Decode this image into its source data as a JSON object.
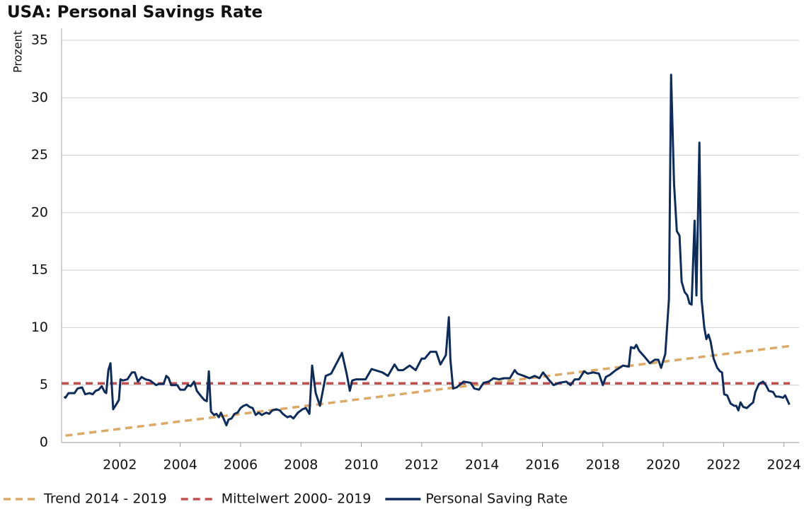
{
  "chart_data": {
    "type": "line",
    "title": "USA: Personal Savings Rate",
    "y_label": "Prozent",
    "xlim": [
      2000.07,
      2024.5
    ],
    "xticks": [
      2002,
      2004,
      2006,
      2008,
      2010,
      2012,
      2014,
      2016,
      2018,
      2020,
      2022,
      2024
    ],
    "ylim": [
      0,
      35
    ],
    "yticks": [
      0,
      5,
      10,
      15,
      20,
      25,
      30,
      35
    ],
    "grid": true,
    "legend": "bottom",
    "series": [
      {
        "name": "Trend 2014 - 2019",
        "color": "#ddaa66",
        "dash": true,
        "x": [
          2000.2,
          2024.2
        ],
        "values": [
          0.6,
          8.4
        ]
      },
      {
        "name": "Mittelwert 2000- 2019",
        "color": "#c0504d",
        "dash": true,
        "x": [
          2000.07,
          2024.2
        ],
        "values": [
          5.15,
          5.15
        ]
      },
      {
        "name": "Personal Saving Rate",
        "color": "#0d2c5c",
        "dash": false,
        "x": [
          2000.16,
          2000.2,
          2000.3,
          2000.5,
          2000.6,
          2000.75,
          2000.85,
          2001.0,
          2001.1,
          2001.2,
          2001.3,
          2001.4,
          2001.5,
          2001.55,
          2001.62,
          2001.69,
          2001.78,
          2001.9,
          2001.97,
          2002.02,
          2002.1,
          2002.25,
          2002.4,
          2002.5,
          2002.6,
          2002.72,
          2002.85,
          2003.0,
          2003.2,
          2003.3,
          2003.45,
          2003.54,
          2003.62,
          2003.7,
          2003.9,
          2004.0,
          2004.15,
          2004.25,
          2004.35,
          2004.46,
          2004.55,
          2004.7,
          2004.8,
          2004.88,
          2004.95,
          2005.02,
          2005.12,
          2005.2,
          2005.28,
          2005.35,
          2005.45,
          2005.53,
          2005.6,
          2005.7,
          2005.8,
          2005.9,
          2006.0,
          2006.1,
          2006.2,
          2006.3,
          2006.4,
          2006.5,
          2006.6,
          2006.7,
          2006.85,
          2006.95,
          2007.05,
          2007.18,
          2007.3,
          2007.4,
          2007.55,
          2007.65,
          2007.75,
          2007.9,
          2008.05,
          2008.16,
          2008.28,
          2008.37,
          2008.49,
          2008.63,
          2008.82,
          2009.0,
          2009.36,
          2009.52,
          2009.62,
          2009.7,
          2009.83,
          2010.0,
          2010.14,
          2010.34,
          2010.7,
          2010.88,
          2011.1,
          2011.22,
          2011.38,
          2011.6,
          2011.8,
          2012.0,
          2012.1,
          2012.29,
          2012.48,
          2012.62,
          2012.8,
          2012.9,
          2012.95,
          2013.04,
          2013.16,
          2013.39,
          2013.62,
          2013.74,
          2013.9,
          2014.05,
          2014.22,
          2014.38,
          2014.56,
          2014.73,
          2014.92,
          2015.08,
          2015.17,
          2015.38,
          2015.57,
          2015.74,
          2015.9,
          2016.02,
          2016.2,
          2016.37,
          2016.56,
          2016.79,
          2016.93,
          2017.07,
          2017.21,
          2017.38,
          2017.5,
          2017.68,
          2017.87,
          2018.0,
          2018.1,
          2018.24,
          2018.43,
          2018.67,
          2018.86,
          2018.93,
          2019.04,
          2019.11,
          2019.2,
          2019.37,
          2019.56,
          2019.72,
          2019.84,
          2019.93,
          2020.07,
          2020.19,
          2020.26,
          2020.36,
          2020.45,
          2020.54,
          2020.61,
          2020.71,
          2020.8,
          2020.87,
          2020.94,
          2021.04,
          2021.1,
          2021.2,
          2021.27,
          2021.36,
          2021.43,
          2021.5,
          2021.57,
          2021.67,
          2021.79,
          2021.88,
          2021.95,
          2022.02,
          2022.12,
          2022.23,
          2022.35,
          2022.42,
          2022.49,
          2022.56,
          2022.65,
          2022.77,
          2022.89,
          2022.98,
          2023.05,
          2023.17,
          2023.31,
          2023.4,
          2023.5,
          2023.64,
          2023.73,
          2023.83,
          2023.97,
          2024.04,
          2024.18
        ],
        "values": [
          4.0,
          3.9,
          4.3,
          4.3,
          4.7,
          4.8,
          4.2,
          4.3,
          4.2,
          4.5,
          4.6,
          4.9,
          4.4,
          4.3,
          6.3,
          6.9,
          2.9,
          3.4,
          3.7,
          5.5,
          5.4,
          5.5,
          6.1,
          6.1,
          5.3,
          5.7,
          5.5,
          5.4,
          5.0,
          5.1,
          5.1,
          5.8,
          5.6,
          5.0,
          5.0,
          4.6,
          4.6,
          5.0,
          4.9,
          5.3,
          4.5,
          4.0,
          3.7,
          3.6,
          6.2,
          2.7,
          2.4,
          2.5,
          2.2,
          2.6,
          2.0,
          1.5,
          2.0,
          2.1,
          2.5,
          2.6,
          3.0,
          3.2,
          3.3,
          3.1,
          3.0,
          2.4,
          2.6,
          2.4,
          2.6,
          2.5,
          2.8,
          2.9,
          2.8,
          2.5,
          2.2,
          2.3,
          2.1,
          2.6,
          2.9,
          3.0,
          2.5,
          6.7,
          4.3,
          3.2,
          5.8,
          6.0,
          7.8,
          5.9,
          4.5,
          5.4,
          5.5,
          5.5,
          5.5,
          6.4,
          6.1,
          5.8,
          6.8,
          6.3,
          6.3,
          6.7,
          6.3,
          7.3,
          7.3,
          7.9,
          7.9,
          6.8,
          7.6,
          10.9,
          7.2,
          4.7,
          4.8,
          5.3,
          5.2,
          4.7,
          4.6,
          5.2,
          5.3,
          5.6,
          5.5,
          5.6,
          5.6,
          6.3,
          6.0,
          5.8,
          5.6,
          5.8,
          5.6,
          6.1,
          5.5,
          5.0,
          5.2,
          5.3,
          5.0,
          5.5,
          5.5,
          6.2,
          6.0,
          6.1,
          6.0,
          5.0,
          5.7,
          5.9,
          6.3,
          6.7,
          6.6,
          8.3,
          8.2,
          8.5,
          8.0,
          7.5,
          6.9,
          7.2,
          7.2,
          6.5,
          7.7,
          12.5,
          32.0,
          22.5,
          18.4,
          18.0,
          14.0,
          13.1,
          12.8,
          12.1,
          12.0,
          19.3,
          12.8,
          26.1,
          12.5,
          10.0,
          9.0,
          9.4,
          8.8,
          7.3,
          6.5,
          6.2,
          6.1,
          4.2,
          4.1,
          3.4,
          3.2,
          3.2,
          2.8,
          3.5,
          3.1,
          3.0,
          3.3,
          3.5,
          4.4,
          5.1,
          5.3,
          5.0,
          4.5,
          4.4,
          4.0,
          4.0,
          3.9,
          4.1,
          3.3
        ]
      }
    ]
  }
}
